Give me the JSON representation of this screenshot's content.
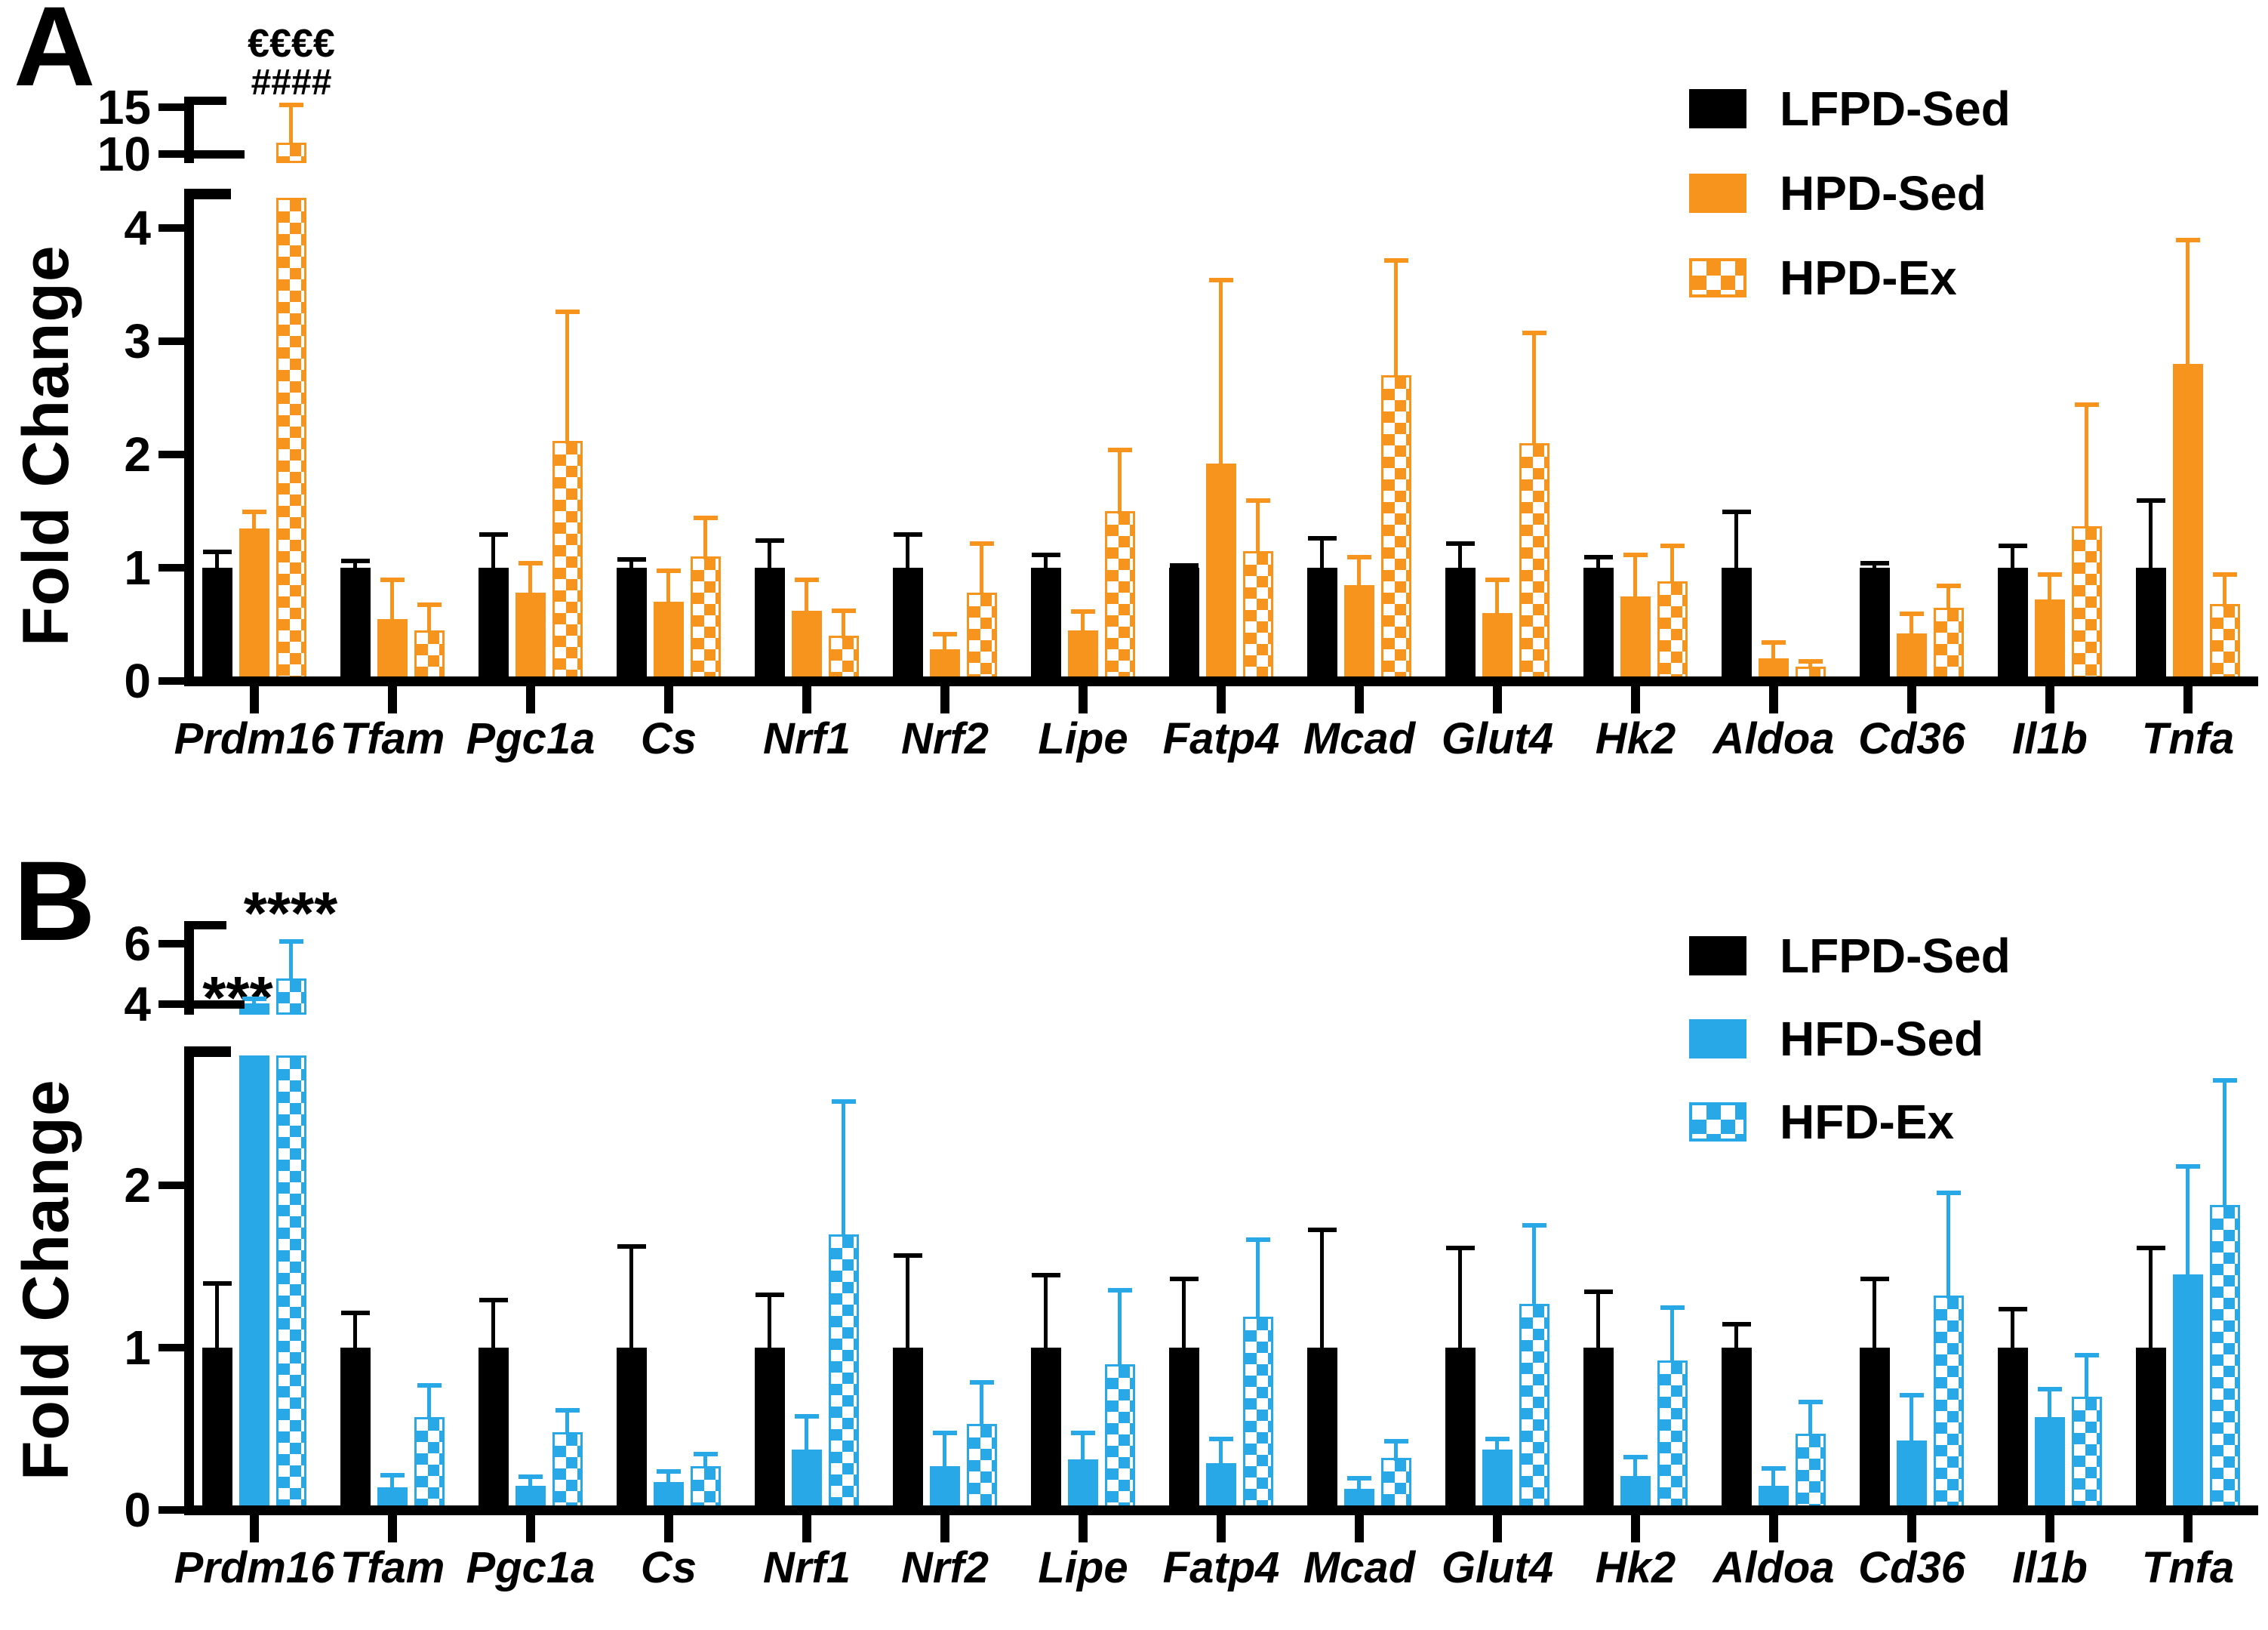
{
  "figure": {
    "panel_a_letter": "A",
    "panel_b_letter": "B",
    "background_color": "#ffffff"
  },
  "chart_data": [
    {
      "type": "bar",
      "panel": "A",
      "title": "",
      "xlabel": "",
      "ylabel": "Fold Change",
      "grid": false,
      "legend_position": "top-right",
      "categories": [
        "Prdm16",
        "Tfam",
        "Pgc1a",
        "Cs",
        "Nrf1",
        "Nrf2",
        "Lipe",
        "Fatp4",
        "Mcad",
        "Glut4",
        "Hk2",
        "Aldoa",
        "Cd36",
        "Il1b",
        "Tnfa"
      ],
      "series": [
        {
          "name": "LFPD-Sed",
          "color": "#000000",
          "pattern": "solid",
          "values": [
            1.0,
            1.0,
            1.0,
            1.0,
            1.0,
            1.0,
            1.0,
            1.0,
            1.0,
            1.0,
            1.0,
            1.0,
            1.0,
            1.0,
            1.0
          ],
          "error_top": [
            1.15,
            1.07,
            1.3,
            1.08,
            1.25,
            1.3,
            1.12,
            1.03,
            1.27,
            1.22,
            1.1,
            1.5,
            1.05,
            1.2,
            1.6
          ]
        },
        {
          "name": "HPD-Sed",
          "color": "#F7941D",
          "pattern": "solid",
          "values": [
            1.35,
            0.55,
            0.78,
            0.7,
            0.62,
            0.28,
            0.45,
            1.92,
            0.85,
            0.6,
            0.75,
            0.2,
            0.42,
            0.72,
            2.8
          ],
          "error_top": [
            1.5,
            0.9,
            1.05,
            0.98,
            0.9,
            0.42,
            0.62,
            3.55,
            1.1,
            0.9,
            1.12,
            0.35,
            0.6,
            0.95,
            3.9
          ]
        },
        {
          "name": "HPD-Ex",
          "color": "#F7941D",
          "pattern": "checker",
          "values": [
            11.2,
            0.45,
            2.12,
            1.1,
            0.4,
            0.78,
            1.5,
            1.15,
            2.7,
            2.1,
            0.88,
            0.13,
            0.65,
            1.37,
            0.68
          ],
          "error_top": [
            15.3,
            0.68,
            3.27,
            1.45,
            0.63,
            1.22,
            2.05,
            1.6,
            3.72,
            3.08,
            1.2,
            0.18,
            0.85,
            2.45,
            0.95
          ]
        }
      ],
      "axis": {
        "axis_break": true,
        "lower_ticks": [
          0,
          1,
          2,
          3,
          4
        ],
        "upper_ticks": [
          10,
          15
        ],
        "lower_range": [
          0,
          4.25
        ],
        "upper_range": [
          10,
          15.6
        ]
      },
      "annotations": [
        {
          "text": "€€€€",
          "target": "Prdm16 HPD-Ex"
        },
        {
          "text": "####",
          "target": "Prdm16 HPD-Ex"
        }
      ]
    },
    {
      "type": "bar",
      "panel": "B",
      "title": "",
      "xlabel": "",
      "ylabel": "Fold Change",
      "grid": false,
      "legend_position": "top-right",
      "categories": [
        "Prdm16",
        "Tfam",
        "Pgc1a",
        "Cs",
        "Nrf1",
        "Nrf2",
        "Lipe",
        "Fatp4",
        "Mcad",
        "Glut4",
        "Hk2",
        "Aldoa",
        "Cd36",
        "Il1b",
        "Tnfa"
      ],
      "series": [
        {
          "name": "LFPD-Sed",
          "color": "#000000",
          "pattern": "solid",
          "values": [
            1.0,
            1.0,
            1.0,
            1.0,
            1.0,
            1.0,
            1.0,
            1.0,
            1.0,
            1.0,
            1.0,
            1.0,
            1.0,
            1.0,
            1.0
          ],
          "error_top": [
            1.4,
            1.22,
            1.3,
            1.63,
            1.33,
            1.57,
            1.45,
            1.43,
            1.73,
            1.62,
            1.35,
            1.15,
            1.43,
            1.24,
            1.62
          ]
        },
        {
          "name": "HFD-Sed",
          "color": "#29A8E8",
          "pattern": "solid",
          "values": [
            4.02,
            0.14,
            0.15,
            0.17,
            0.37,
            0.27,
            0.31,
            0.29,
            0.13,
            0.37,
            0.21,
            0.15,
            0.43,
            0.57,
            1.45
          ],
          "error_top": [
            4.2,
            0.22,
            0.21,
            0.24,
            0.58,
            0.48,
            0.48,
            0.44,
            0.2,
            0.44,
            0.33,
            0.26,
            0.71,
            0.75,
            2.12
          ]
        },
        {
          "name": "HFD-Ex",
          "color": "#29A8E8",
          "pattern": "checker",
          "values": [
            4.85,
            0.57,
            0.48,
            0.27,
            1.7,
            0.53,
            0.9,
            1.19,
            0.32,
            1.27,
            0.92,
            0.47,
            1.32,
            0.7,
            1.88
          ],
          "error_top": [
            6.1,
            0.77,
            0.62,
            0.35,
            2.52,
            0.79,
            1.36,
            1.67,
            0.43,
            1.76,
            1.25,
            0.67,
            1.96,
            0.96,
            2.65
          ]
        }
      ],
      "axis": {
        "axis_break": true,
        "lower_ticks": [
          0,
          1,
          2
        ],
        "upper_ticks": [
          4,
          6
        ],
        "lower_range": [
          0,
          2.8
        ],
        "upper_range": [
          4,
          6.6
        ]
      },
      "annotations": [
        {
          "text": "***",
          "target": "Prdm16 HFD-Sed"
        },
        {
          "text": "****",
          "target": "Prdm16 HFD-Ex"
        }
      ]
    }
  ]
}
